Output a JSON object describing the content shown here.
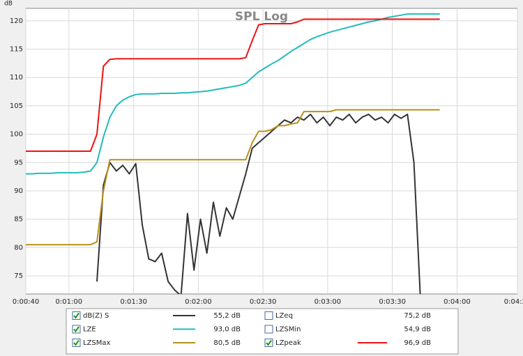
{
  "chart_data": {
    "type": "line",
    "title": "SPL Log",
    "y_label": "dB",
    "x": [
      40,
      43,
      46,
      49,
      52,
      55,
      58,
      61,
      64,
      67,
      70,
      73,
      76,
      79,
      82,
      85,
      88,
      91,
      94,
      97,
      100,
      103,
      106,
      109,
      112,
      115,
      118,
      121,
      124,
      127,
      130,
      133,
      136,
      139,
      142,
      145,
      148,
      151,
      154,
      157,
      160,
      163,
      166,
      169,
      172,
      175,
      178,
      181,
      184,
      187,
      190,
      193,
      196,
      199,
      202,
      205,
      208,
      211,
      214,
      217,
      220,
      223,
      226,
      229,
      232,
      235
    ],
    "xlim": [
      40,
      268
    ],
    "xticks": [
      {
        "value": 40,
        "label": "0:00:40"
      },
      {
        "value": 60,
        "label": "0:01:00"
      },
      {
        "value": 90,
        "label": "0:01:30"
      },
      {
        "value": 120,
        "label": "0:02:00"
      },
      {
        "value": 150,
        "label": "0:02:30"
      },
      {
        "value": 180,
        "label": "0:03:00"
      },
      {
        "value": 210,
        "label": "0:03:30"
      },
      {
        "value": 240,
        "label": "0:04:00"
      },
      {
        "value": 268,
        "label": "0:04:28"
      }
    ],
    "ylim": [
      71.8,
      122.2
    ],
    "yticks": [
      75,
      80,
      85,
      90,
      95,
      100,
      105,
      110,
      115,
      120
    ],
    "grid": true,
    "series": [
      {
        "name": "dB(Z) S",
        "color": "#333333",
        "reading": "55,2 dB",
        "checked": true,
        "values": [
          null,
          null,
          null,
          null,
          null,
          null,
          null,
          null,
          null,
          null,
          null,
          74,
          91,
          95,
          93.5,
          94.5,
          93,
          94.8,
          84,
          78,
          77.5,
          79,
          74,
          72.5,
          71.5,
          86,
          76,
          85,
          79,
          88,
          82,
          87,
          85,
          89,
          93,
          97.5,
          98.5,
          99.5,
          100.5,
          101.5,
          102.5,
          102,
          103,
          102.5,
          103.5,
          102,
          103,
          101.5,
          103,
          102.5,
          103.5,
          102,
          103,
          103.5,
          102.5,
          103,
          102,
          103.5,
          102.8,
          103.5,
          95,
          71,
          null,
          null,
          null,
          null
        ]
      },
      {
        "name": "LZE",
        "color": "#22bbbb",
        "reading": "93,0 dB",
        "checked": true,
        "values": [
          93,
          93,
          93.1,
          93.1,
          93.1,
          93.2,
          93.2,
          93.2,
          93.2,
          93.3,
          93.5,
          95,
          99.5,
          103,
          105,
          106,
          106.6,
          107,
          107.1,
          107.1,
          107.1,
          107.2,
          107.2,
          107.2,
          107.3,
          107.3,
          107.4,
          107.5,
          107.6,
          107.8,
          108,
          108.2,
          108.4,
          108.6,
          109,
          110,
          111,
          111.7,
          112.4,
          113,
          113.8,
          114.6,
          115.3,
          116,
          116.7,
          117.2,
          117.6,
          118,
          118.3,
          118.6,
          118.9,
          119.2,
          119.5,
          119.8,
          120,
          120.3,
          120.6,
          120.8,
          121,
          121.2,
          121.2,
          121.2,
          121.2,
          121.2,
          121.2,
          null
        ]
      },
      {
        "name": "LZSMax",
        "color": "#b8901a",
        "reading": "80,5 dB",
        "checked": true,
        "values": [
          80.5,
          80.5,
          80.5,
          80.5,
          80.5,
          80.5,
          80.5,
          80.5,
          80.5,
          80.5,
          80.5,
          81,
          90,
          95.5,
          95.5,
          95.5,
          95.5,
          95.5,
          95.5,
          95.5,
          95.5,
          95.5,
          95.5,
          95.5,
          95.5,
          95.5,
          95.5,
          95.5,
          95.5,
          95.5,
          95.5,
          95.5,
          95.5,
          95.5,
          95.5,
          98.5,
          100.5,
          100.5,
          100.8,
          101.5,
          101.5,
          101.8,
          102,
          104,
          104,
          104,
          104,
          104,
          104.3,
          104.3,
          104.3,
          104.3,
          104.3,
          104.3,
          104.3,
          104.3,
          104.3,
          104.3,
          104.3,
          104.3,
          104.3,
          104.3,
          104.3,
          104.3,
          104.3,
          null
        ]
      },
      {
        "name": "LZeq",
        "color": "#cc00cc",
        "reading": "75,2 dB",
        "checked": false
      },
      {
        "name": "LZSMin",
        "color": "#1a1acc",
        "reading": "54,9 dB",
        "checked": false
      },
      {
        "name": "LZpeak",
        "color": "#ee1111",
        "reading": "96,9 dB",
        "checked": true,
        "values": [
          97,
          97,
          97,
          97,
          97,
          97,
          97,
          97,
          97,
          97,
          97,
          100,
          112,
          113.2,
          113.3,
          113.3,
          113.3,
          113.3,
          113.3,
          113.3,
          113.3,
          113.3,
          113.3,
          113.3,
          113.3,
          113.3,
          113.3,
          113.3,
          113.3,
          113.3,
          113.3,
          113.3,
          113.3,
          113.3,
          113.5,
          116.5,
          119.3,
          119.5,
          119.5,
          119.5,
          119.5,
          119.5,
          119.8,
          120.3,
          120.3,
          120.3,
          120.3,
          120.3,
          120.3,
          120.3,
          120.3,
          120.3,
          120.3,
          120.3,
          120.3,
          120.3,
          120.3,
          120.3,
          120.3,
          120.3,
          120.3,
          120.3,
          120.3,
          120.3,
          120.3,
          null
        ]
      }
    ]
  }
}
